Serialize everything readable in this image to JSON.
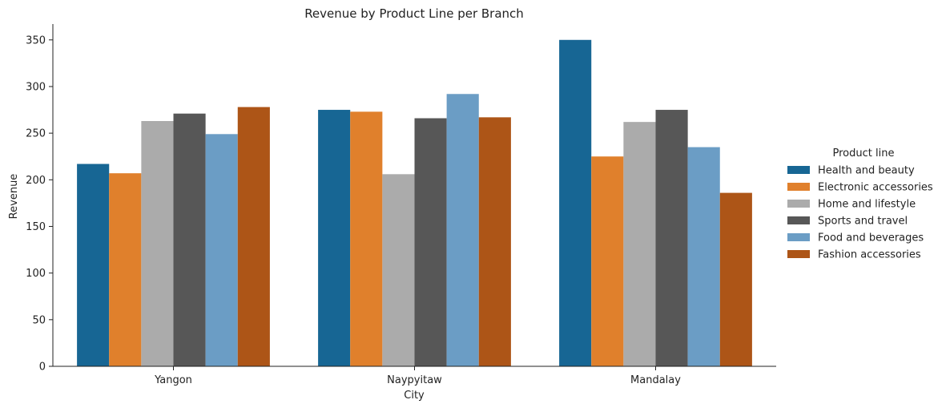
{
  "chart_data": {
    "type": "bar",
    "title": "Revenue by Product Line per Branch",
    "xlabel": "City",
    "ylabel": "Revenue",
    "ylim": [
      0,
      367
    ],
    "yticks": [
      0,
      50,
      100,
      150,
      200,
      250,
      300,
      350
    ],
    "categories": [
      "Yangon",
      "Naypyitaw",
      "Mandalay"
    ],
    "legend_title": "Product line",
    "legend_position": "right",
    "grid": false,
    "series": [
      {
        "name": "Health and beauty",
        "color": "#176694",
        "values": [
          217,
          275,
          350
        ]
      },
      {
        "name": "Electronic accessories",
        "color": "#e0802c",
        "values": [
          207,
          273,
          225
        ]
      },
      {
        "name": "Home and lifestyle",
        "color": "#ababab",
        "values": [
          263,
          206,
          262
        ]
      },
      {
        "name": "Sports and travel",
        "color": "#575757",
        "values": [
          271,
          266,
          275
        ]
      },
      {
        "name": "Food and beverages",
        "color": "#6b9dc5",
        "values": [
          249,
          292,
          235
        ]
      },
      {
        "name": "Fashion accessories",
        "color": "#ad5517",
        "values": [
          278,
          267,
          186
        ]
      }
    ]
  }
}
